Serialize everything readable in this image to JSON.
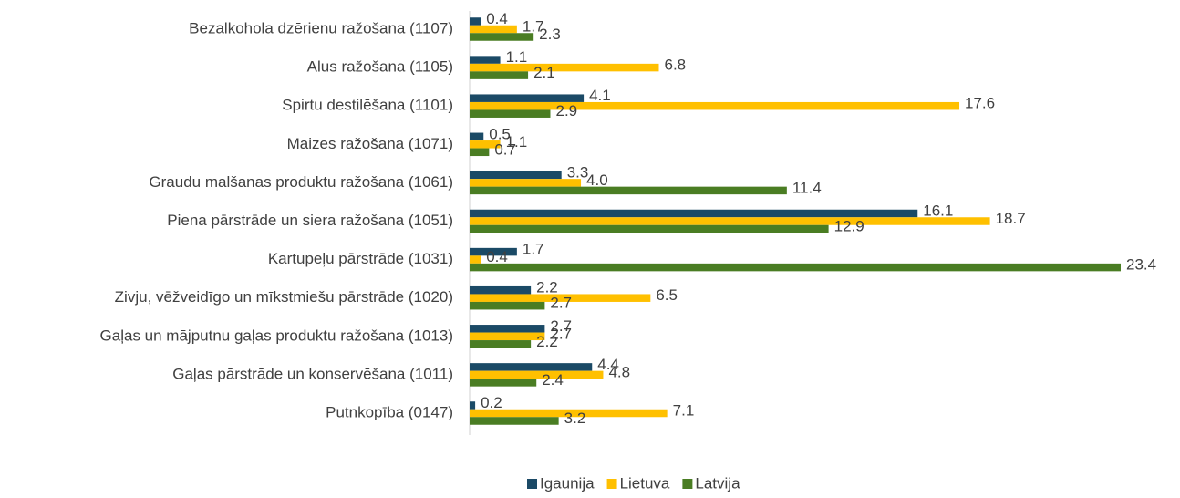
{
  "chart_data": {
    "type": "hbar",
    "categories": [
      "Bezalkohola dzērienu ražošana (1107)",
      "Alus ražošana (1105)",
      "Spirtu destilēšana (1101)",
      "Maizes ražošana (1071)",
      "Graudu malšanas produktu ražošana (1061)",
      "Piena pārstrāde un siera ražošana (1051)",
      "Kartupeļu pārstrāde (1031)",
      "Zivju, vēžveidīgo un mīkstmiešu pārstrāde (1020)",
      "Gaļas un mājputnu gaļas produktu ražošana (1013)",
      "Gaļas pārstrāde un konservēšana (1011)",
      "Putnkopība (0147)"
    ],
    "series": [
      {
        "name": "Igaunija",
        "color": "#1b4a66",
        "values": [
          0.4,
          1.1,
          4.1,
          0.5,
          3.3,
          16.1,
          1.7,
          2.2,
          2.7,
          4.4,
          0.2
        ]
      },
      {
        "name": "Lietuva",
        "color": "#ffc000",
        "values": [
          1.7,
          6.8,
          17.6,
          1.1,
          4.0,
          18.7,
          0.4,
          6.5,
          2.7,
          4.8,
          7.1
        ],
        "value_labels": [
          "1.7",
          "6.8",
          "17.6",
          "1.1",
          "4.0",
          "18.7",
          "0.4",
          "6.5",
          "2.7",
          "4.8",
          "7.1"
        ]
      },
      {
        "name": "Latvija",
        "color": "#4a7d23",
        "values": [
          2.3,
          2.1,
          2.9,
          0.7,
          11.4,
          12.9,
          23.4,
          2.7,
          2.2,
          2.4,
          3.2
        ]
      }
    ],
    "legend": "bottom"
  }
}
